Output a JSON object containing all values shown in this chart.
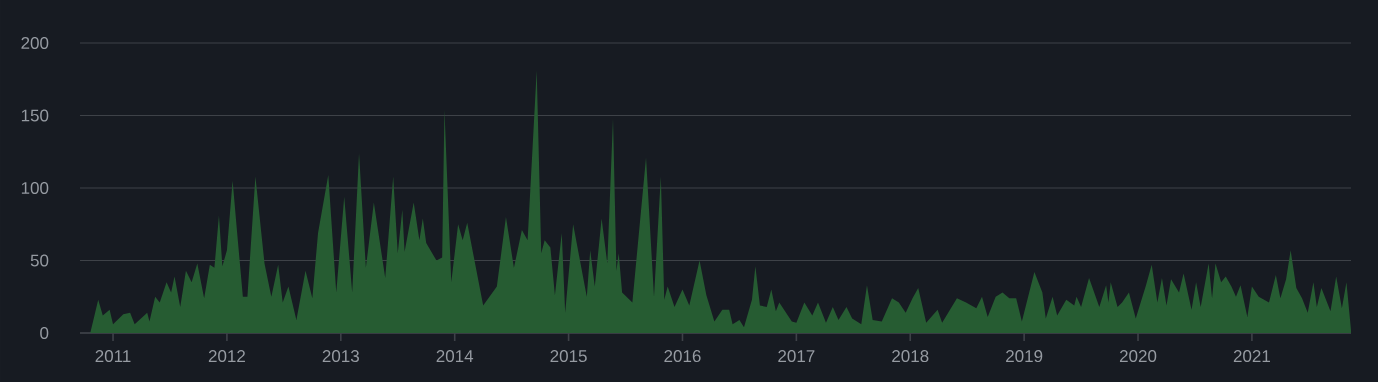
{
  "chart_data": {
    "type": "area",
    "x": [
      2010.8,
      2010.87,
      2010.91,
      2010.97,
      2011.0,
      2011.09,
      2011.15,
      2011.19,
      2011.3,
      2011.32,
      2011.37,
      2011.41,
      2011.47,
      2011.51,
      2011.54,
      2011.59,
      2011.64,
      2011.69,
      2011.74,
      2011.8,
      2011.85,
      2011.89,
      2011.93,
      2011.96,
      2012.0,
      2012.05,
      2012.09,
      2012.14,
      2012.18,
      2012.25,
      2012.33,
      2012.39,
      2012.45,
      2012.49,
      2012.54,
      2012.61,
      2012.69,
      2012.75,
      2012.8,
      2012.89,
      2012.96,
      2013.03,
      2013.1,
      2013.16,
      2013.22,
      2013.29,
      2013.39,
      2013.46,
      2013.5,
      2013.54,
      2013.56,
      2013.64,
      2013.69,
      2013.72,
      2013.75,
      2013.84,
      2013.89,
      2013.91,
      2013.97,
      2014.03,
      2014.07,
      2014.11,
      2014.25,
      2014.37,
      2014.45,
      2014.52,
      2014.59,
      2014.64,
      2014.72,
      2014.76,
      2014.79,
      2014.84,
      2014.88,
      2014.94,
      2014.97,
      2015.04,
      2015.16,
      2015.19,
      2015.23,
      2015.29,
      2015.34,
      2015.39,
      2015.42,
      2015.44,
      2015.47,
      2015.56,
      2015.68,
      2015.75,
      2015.81,
      2015.84,
      2015.87,
      2015.93,
      2016.0,
      2016.06,
      2016.15,
      2016.21,
      2016.28,
      2016.35,
      2016.41,
      2016.44,
      2016.5,
      2016.54,
      2016.61,
      2016.64,
      2016.68,
      2016.74,
      2016.78,
      2016.82,
      2016.85,
      2016.96,
      2017.0,
      2017.07,
      2017.14,
      2017.19,
      2017.26,
      2017.32,
      2017.37,
      2017.44,
      2017.49,
      2017.57,
      2017.62,
      2017.67,
      2017.75,
      2017.84,
      2017.9,
      2017.96,
      2018.02,
      2018.07,
      2018.14,
      2018.24,
      2018.28,
      2018.41,
      2018.49,
      2018.58,
      2018.63,
      2018.68,
      2018.75,
      2018.81,
      2018.87,
      2018.93,
      2018.98,
      2019.09,
      2019.16,
      2019.19,
      2019.25,
      2019.29,
      2019.37,
      2019.44,
      2019.46,
      2019.5,
      2019.57,
      2019.66,
      2019.72,
      2019.74,
      2019.76,
      2019.82,
      2019.86,
      2019.92,
      2019.98,
      2020.07,
      2020.12,
      2020.17,
      2020.21,
      2020.25,
      2020.29,
      2020.36,
      2020.4,
      2020.47,
      2020.51,
      2020.55,
      2020.62,
      2020.65,
      2020.68,
      2020.73,
      2020.77,
      2020.82,
      2020.86,
      2020.9,
      2020.96,
      2021.0,
      2021.06,
      2021.15,
      2021.21,
      2021.25,
      2021.3,
      2021.34,
      2021.39,
      2021.44,
      2021.49,
      2021.54,
      2021.57,
      2021.61,
      2021.69,
      2021.74,
      2021.79,
      2021.83,
      2021.87
    ],
    "values": [
      0,
      23,
      12,
      16,
      6,
      13,
      14,
      6,
      14,
      8,
      25,
      21,
      35,
      28,
      39,
      18,
      43,
      35,
      48,
      24,
      47,
      45,
      81,
      46,
      57,
      105,
      69,
      25,
      25,
      108,
      48,
      25,
      47,
      21,
      32,
      9,
      43,
      24,
      69,
      109,
      28,
      94,
      28,
      124,
      45,
      90,
      38,
      108,
      55,
      85,
      56,
      90,
      64,
      79,
      62,
      50,
      52,
      154,
      35,
      75,
      64,
      76,
      19,
      32,
      80,
      45,
      71,
      64,
      181,
      55,
      64,
      59,
      26,
      69,
      14,
      75,
      25,
      57,
      32,
      79,
      48,
      148,
      43,
      55,
      28,
      21,
      121,
      25,
      108,
      23,
      32,
      18,
      30,
      19,
      50,
      26,
      8,
      16,
      16,
      6,
      9,
      4,
      23,
      46,
      19,
      18,
      30,
      15,
      21,
      8,
      7,
      21,
      12,
      21,
      7,
      18,
      9,
      18,
      10,
      6,
      33,
      9,
      8,
      24,
      21,
      14,
      24,
      31,
      7,
      16,
      7,
      24,
      21,
      17,
      25,
      11,
      25,
      28,
      24,
      24,
      8,
      42,
      28,
      10,
      25,
      12,
      23,
      19,
      25,
      18,
      38,
      18,
      33,
      21,
      35,
      18,
      21,
      28,
      10,
      33,
      47,
      21,
      38,
      19,
      37,
      28,
      41,
      16,
      35,
      18,
      48,
      24,
      48,
      35,
      39,
      32,
      25,
      33,
      11,
      32,
      25,
      21,
      40,
      24,
      37,
      57,
      31,
      24,
      14,
      35,
      18,
      31,
      15,
      39,
      17,
      35,
      2
    ],
    "color": "#265c32",
    "xlim": [
      2010.71,
      2021.87
    ],
    "xticks": [
      2011,
      2012,
      2013,
      2014,
      2015,
      2016,
      2017,
      2018,
      2019,
      2020,
      2021
    ],
    "ylim": [
      0,
      200
    ],
    "yticks": [
      0,
      50,
      100,
      150,
      200
    ],
    "grid": "y"
  }
}
